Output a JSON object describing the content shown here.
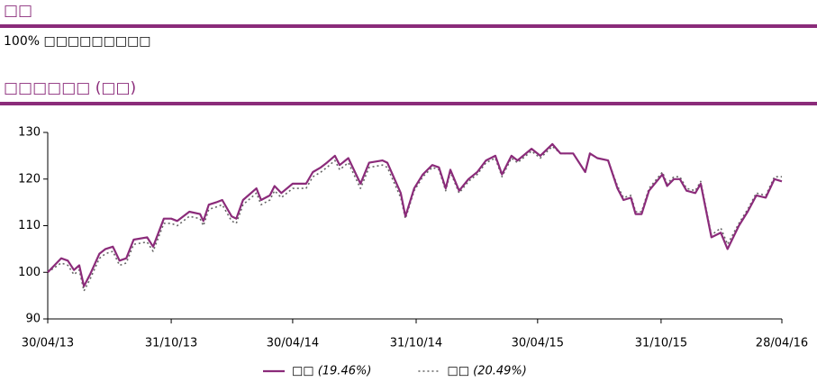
{
  "header": {
    "title": "□□",
    "description": "100% □□□□□□□□□",
    "chart_heading": "□□□□□□ (□□)"
  },
  "chart_data": {
    "type": "line",
    "x": [
      "2013-04-30",
      "2013-05-20",
      "2013-05-30",
      "2013-06-08",
      "2013-06-16",
      "2013-06-23",
      "2013-07-02",
      "2013-07-16",
      "2013-07-25",
      "2013-08-05",
      "2013-08-15",
      "2013-08-25",
      "2013-09-05",
      "2013-09-25",
      "2013-10-04",
      "2013-10-20",
      "2013-10-31",
      "2013-11-09",
      "2013-11-27",
      "2013-12-13",
      "2013-12-18",
      "2013-12-26",
      "2014-01-06",
      "2014-01-15",
      "2014-01-29",
      "2014-02-05",
      "2014-02-15",
      "2014-03-07",
      "2014-03-14",
      "2014-03-27",
      "2014-04-03",
      "2014-04-13",
      "2014-04-30",
      "2014-05-20",
      "2014-05-30",
      "2014-06-11",
      "2014-06-20",
      "2014-07-02",
      "2014-07-09",
      "2014-07-22",
      "2014-08-09",
      "2014-08-22",
      "2014-09-11",
      "2014-09-18",
      "2014-10-08",
      "2014-10-15",
      "2014-10-28",
      "2014-11-10",
      "2014-11-24",
      "2014-12-04",
      "2014-12-14",
      "2014-12-21",
      "2015-01-03",
      "2015-01-17",
      "2015-01-30",
      "2015-02-12",
      "2015-02-26",
      "2015-03-08",
      "2015-03-22",
      "2015-03-31",
      "2015-04-21",
      "2015-05-04",
      "2015-05-22",
      "2015-06-03",
      "2015-06-22",
      "2015-07-10",
      "2015-07-17",
      "2015-07-28",
      "2015-08-13",
      "2015-08-27",
      "2015-09-05",
      "2015-09-16",
      "2015-09-23",
      "2015-10-02",
      "2015-10-13",
      "2015-11-02",
      "2015-11-09",
      "2015-11-19",
      "2015-11-28",
      "2015-12-08",
      "2015-12-21",
      "2015-12-29",
      "2016-01-14",
      "2016-01-28",
      "2016-02-07",
      "2016-02-24",
      "2016-03-08",
      "2016-03-21",
      "2016-04-04",
      "2016-04-17",
      "2016-04-28"
    ],
    "series": [
      {
        "name": "□□ (19.46%)",
        "color": "#8b2b7a",
        "dash": "solid",
        "values": [
          100,
          103,
          102.5,
          100.5,
          101.5,
          97,
          99.5,
          104,
          105,
          105.5,
          102.5,
          103,
          107,
          107.5,
          105.5,
          111.5,
          111.5,
          111,
          113,
          112.5,
          111,
          114.5,
          115,
          115.5,
          112,
          111.5,
          115.5,
          118,
          115.5,
          116.5,
          118.5,
          117,
          119,
          119,
          121.5,
          122.5,
          123.5,
          125,
          123,
          124.5,
          119,
          123.5,
          124,
          123.5,
          117,
          112,
          118,
          121,
          123,
          122.5,
          118,
          122,
          117.5,
          120,
          121.5,
          124,
          125,
          121,
          125,
          124,
          126.5,
          125,
          127.5,
          125.5,
          125.5,
          121.5,
          125.5,
          124.5,
          124,
          118,
          115.5,
          116,
          112.5,
          112.5,
          117.5,
          121,
          118.5,
          120,
          120,
          117.5,
          117,
          119,
          107.5,
          108.5,
          105,
          110,
          113,
          116.5,
          116,
          120,
          119.5
        ]
      },
      {
        "name": "□□ (20.49%)",
        "color": "#666666",
        "dash": "dotted",
        "values": [
          100,
          102,
          101.5,
          99.5,
          100.5,
          96,
          98.5,
          103,
          104,
          104.5,
          101.5,
          102,
          106,
          106.5,
          104.5,
          110.5,
          110.5,
          110,
          112,
          111.5,
          110,
          113.5,
          114,
          114.5,
          111,
          110.5,
          114.5,
          117,
          114.5,
          115.5,
          117.5,
          116,
          118,
          118,
          120.5,
          121.5,
          122.5,
          124,
          122,
          123.5,
          118,
          122.5,
          123,
          122.5,
          116,
          111.5,
          117.5,
          120.5,
          122.5,
          122,
          117.5,
          121.5,
          117,
          119.5,
          121,
          123.5,
          124.5,
          120.5,
          124.5,
          123.5,
          126,
          124.5,
          127,
          125.5,
          125.5,
          121.5,
          125.5,
          124.5,
          124,
          118.5,
          116,
          116.5,
          113,
          113,
          118,
          121.5,
          119,
          120.5,
          120.5,
          118,
          117.5,
          119.5,
          108,
          109.5,
          106,
          110.5,
          113.5,
          117,
          116.5,
          120.5,
          120.5
        ]
      }
    ],
    "xlim": [
      "2013-04-30",
      "2016-04-28"
    ],
    "xticks": [
      {
        "value": "2013-04-30",
        "label": "30/04/13"
      },
      {
        "value": "2013-10-31",
        "label": "31/10/13"
      },
      {
        "value": "2014-04-30",
        "label": "30/04/14"
      },
      {
        "value": "2014-10-31",
        "label": "31/10/14"
      },
      {
        "value": "2015-04-30",
        "label": "30/04/15"
      },
      {
        "value": "2015-10-31",
        "label": "31/10/15"
      },
      {
        "value": "2016-04-28",
        "label": "28/04/16"
      }
    ],
    "ylim": [
      90,
      130
    ],
    "yticks": [
      90,
      100,
      110,
      120,
      130
    ],
    "grid": false,
    "legend": "bottom"
  }
}
